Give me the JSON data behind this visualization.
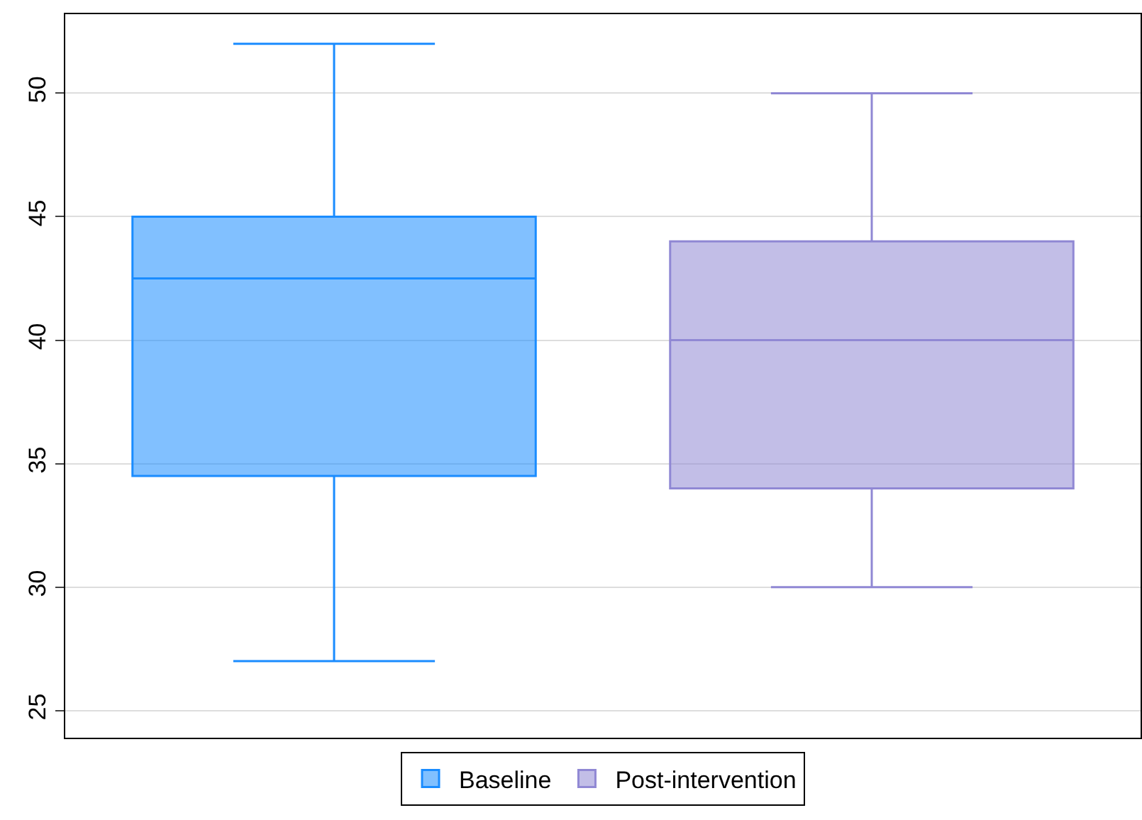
{
  "chart_data": {
    "type": "box",
    "categories": [
      null,
      null
    ],
    "series": [
      {
        "name": "Baseline",
        "color": "#1a8cff",
        "boxes": [
          {
            "low": 27,
            "q1": 34.5,
            "median": 42.5,
            "q3": 45,
            "high": 52
          },
          null
        ]
      },
      {
        "name": "Post-intervention",
        "color": "#9088d4",
        "boxes": [
          null,
          {
            "low": 30,
            "q1": 34,
            "median": 40,
            "q3": 44,
            "high": 50
          }
        ]
      }
    ],
    "ylim": [
      23.9,
      53.2
    ],
    "yticks": [
      25,
      30,
      35,
      40,
      45,
      50
    ],
    "grid": "y",
    "legend": "bottom"
  }
}
